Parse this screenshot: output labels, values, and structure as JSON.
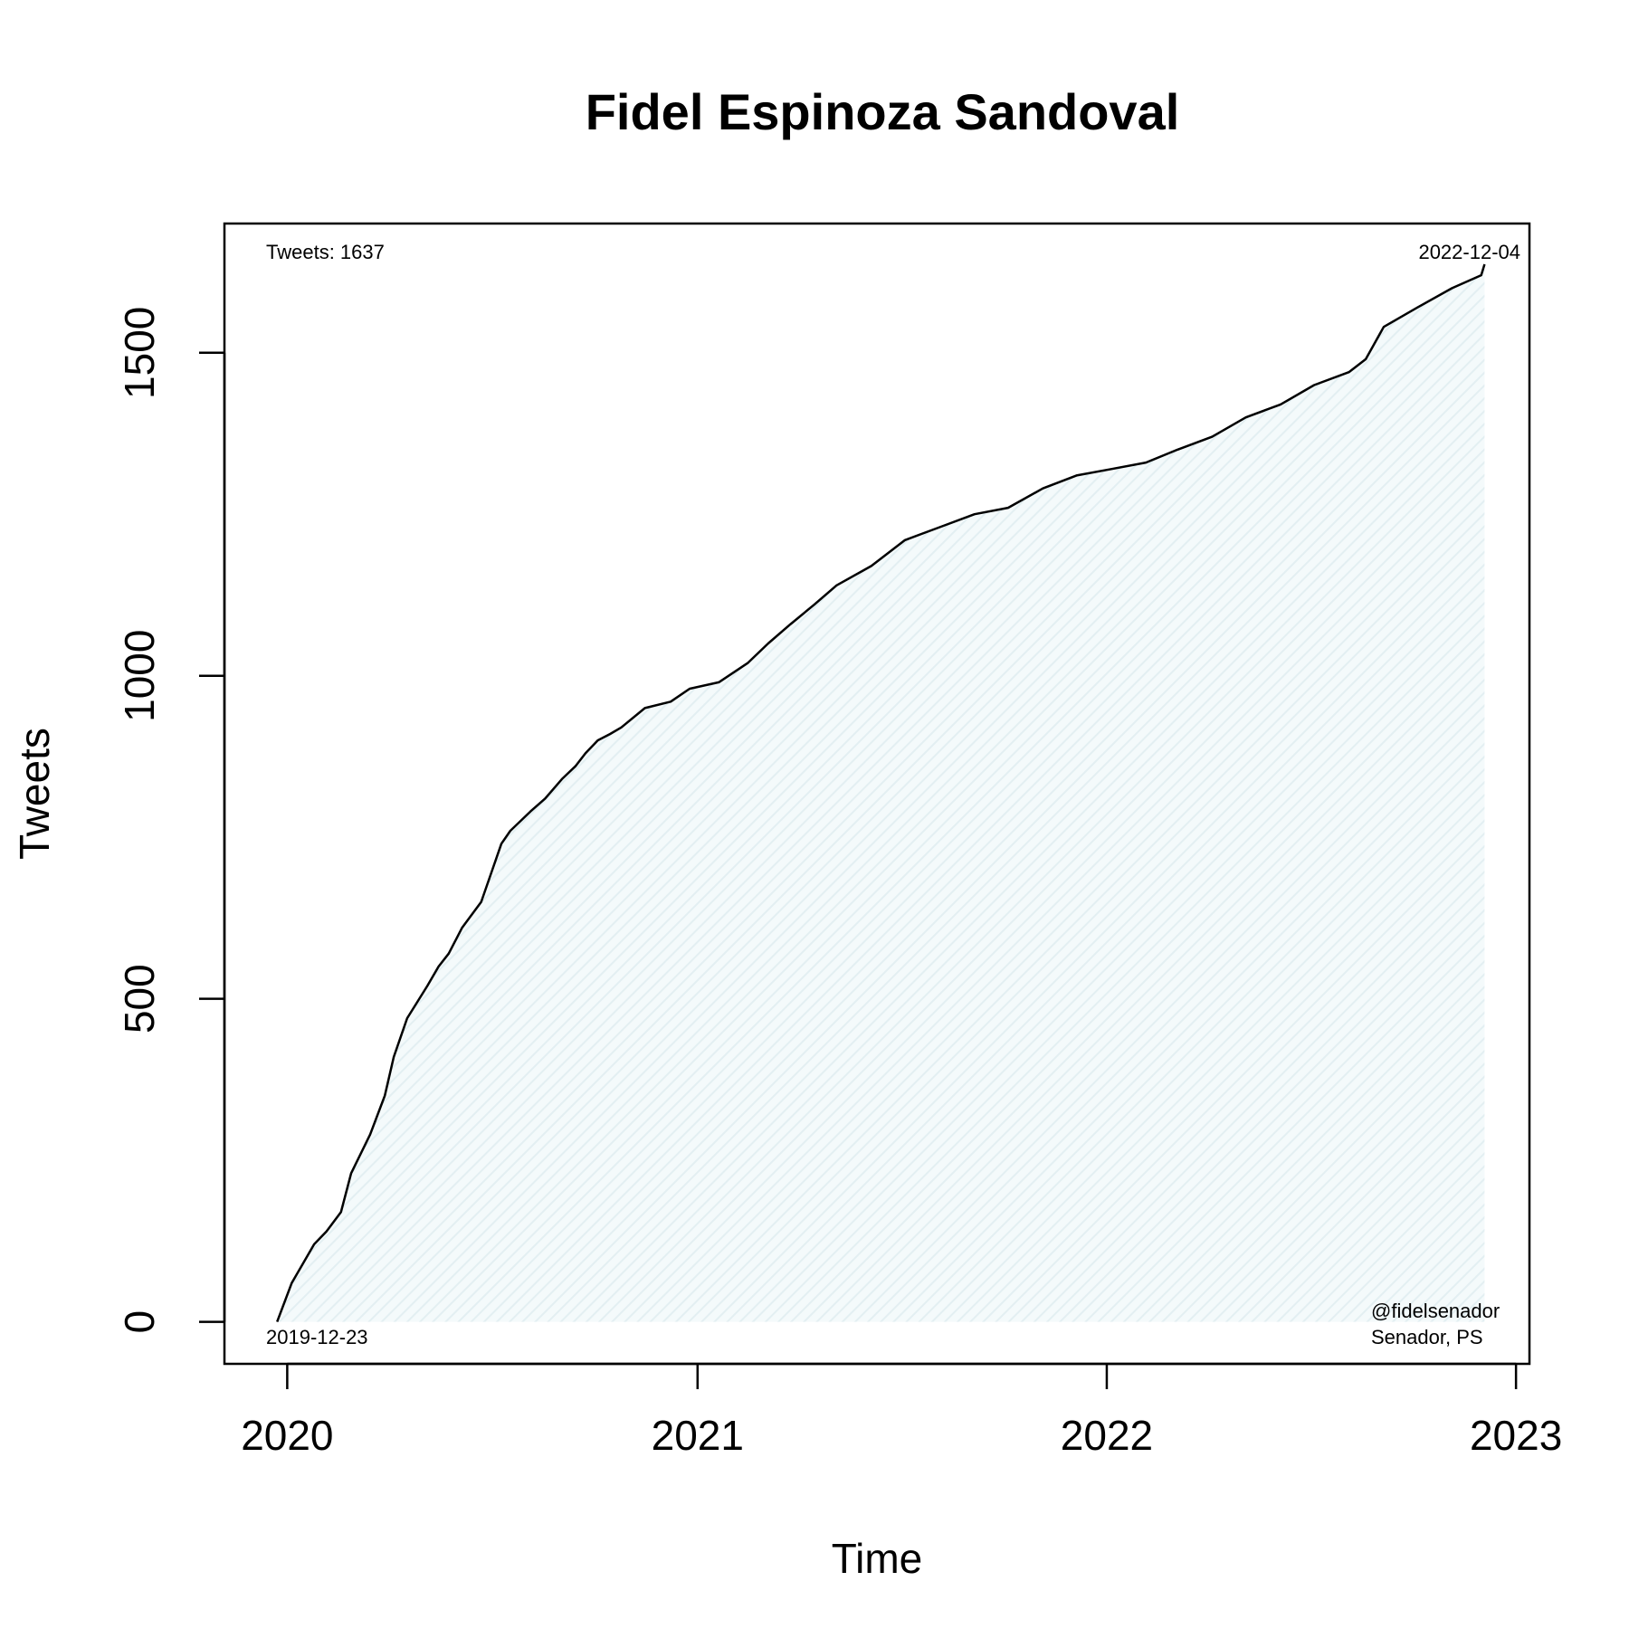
{
  "chart_data": {
    "type": "area",
    "title": "Fidel Espinoza Sandoval",
    "xlabel": "Time",
    "ylabel": "Tweets",
    "x_axis_type": "date",
    "xlim": [
      "2019-11-06",
      "2023-01-13"
    ],
    "ylim": [
      -65,
      1700
    ],
    "x_ticks": [
      "2020",
      "2021",
      "2022",
      "2023"
    ],
    "x_tick_dates": [
      "2020-01-01",
      "2021-01-01",
      "2022-01-01",
      "2023-01-01"
    ],
    "y_ticks": [
      0,
      500,
      1000,
      1500
    ],
    "grid": false,
    "legend": "none",
    "fill_color": "#e6f2f5",
    "line_color": "#000000",
    "annotations": {
      "top_left": "Tweets: 1637",
      "top_right": "2022-12-04",
      "bottom_left": "2019-12-23",
      "bottom_right_line1": "@fidelsenador",
      "bottom_right_line2": "Senador, PS"
    },
    "series": [
      {
        "x": [
          "2019-12-23",
          "2020-01-05",
          "2020-01-25",
          "2020-02-05",
          "2020-02-18",
          "2020-02-27",
          "2020-03-15",
          "2020-03-28",
          "2020-04-05",
          "2020-04-17",
          "2020-05-05",
          "2020-05-15",
          "2020-05-24",
          "2020-06-05",
          "2020-06-22",
          "2020-07-02",
          "2020-07-10",
          "2020-07-18",
          "2020-08-05",
          "2020-08-18",
          "2020-09-02",
          "2020-09-14",
          "2020-09-23",
          "2020-10-04",
          "2020-10-15",
          "2020-10-25",
          "2020-11-15",
          "2020-12-08",
          "2020-12-25",
          "2021-01-20",
          "2021-02-15",
          "2021-03-05",
          "2021-03-25",
          "2021-04-15",
          "2021-05-05",
          "2021-06-05",
          "2021-07-05",
          "2021-08-05",
          "2021-09-05",
          "2021-10-05",
          "2021-11-05",
          "2021-12-05",
          "2022-01-05",
          "2022-02-05",
          "2022-03-05",
          "2022-04-05",
          "2022-05-05",
          "2022-06-05",
          "2022-07-05",
          "2022-08-05",
          "2022-08-20",
          "2022-09-05",
          "2022-10-05",
          "2022-11-05",
          "2022-12-01",
          "2022-12-04"
        ],
        "values": [
          0,
          60,
          120,
          140,
          170,
          230,
          290,
          350,
          410,
          470,
          520,
          550,
          570,
          610,
          650,
          700,
          740,
          760,
          790,
          810,
          840,
          860,
          880,
          900,
          910,
          920,
          950,
          960,
          980,
          990,
          1020,
          1050,
          1080,
          1110,
          1140,
          1170,
          1210,
          1230,
          1250,
          1260,
          1290,
          1310,
          1320,
          1330,
          1350,
          1370,
          1400,
          1420,
          1450,
          1470,
          1490,
          1540,
          1570,
          1600,
          1620,
          1637
        ]
      }
    ]
  }
}
